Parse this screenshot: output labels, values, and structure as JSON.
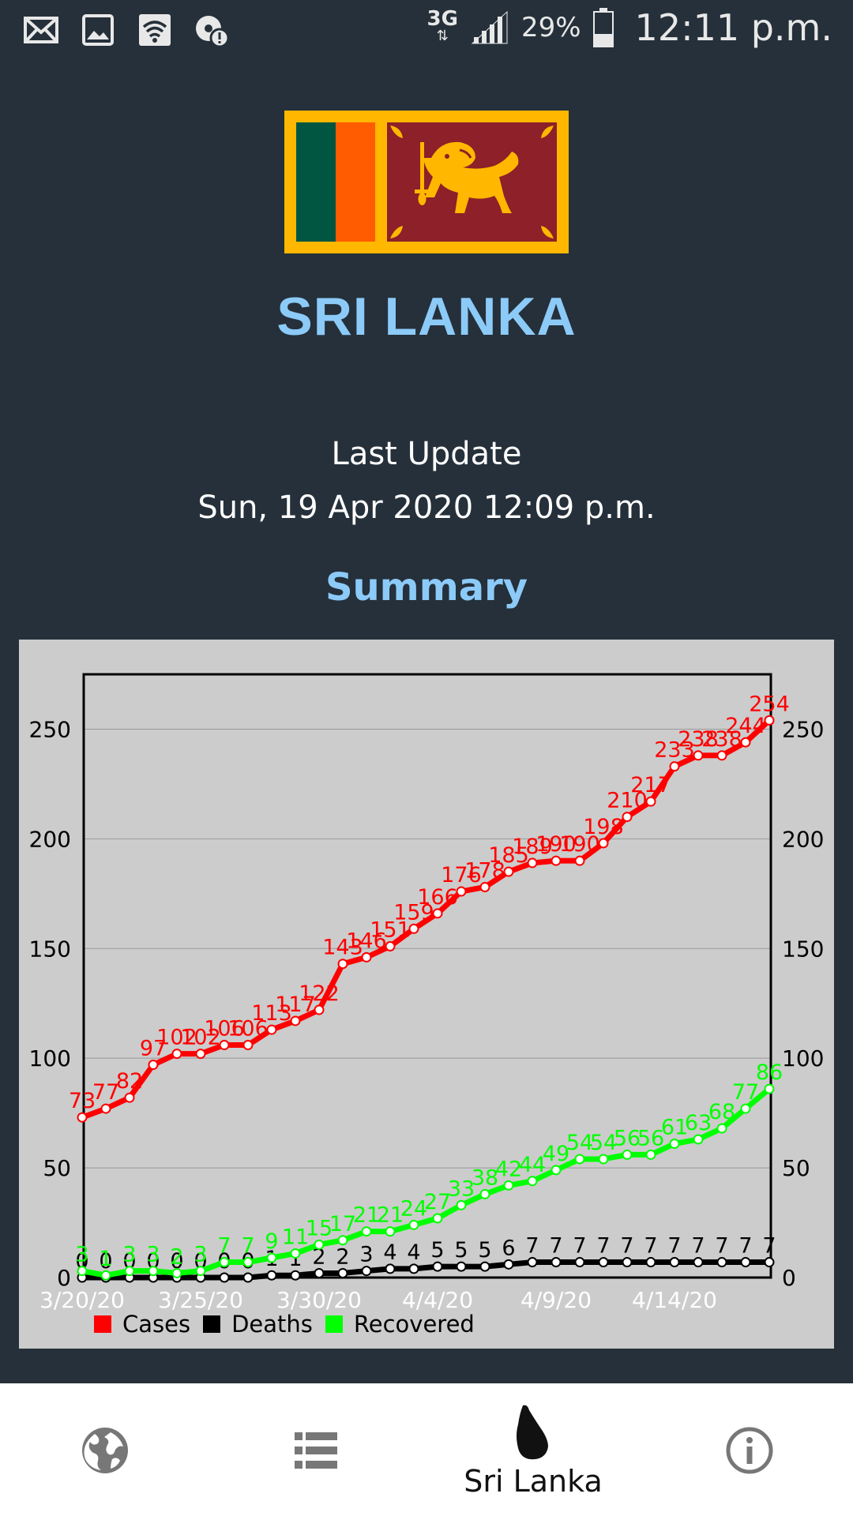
{
  "status_bar": {
    "network": "3G",
    "battery_pct": "29%",
    "time": "12:11 p.m.",
    "left_icons": [
      "mail-icon",
      "image-icon",
      "wifi-icon",
      "data-warning-icon"
    ]
  },
  "country": {
    "title": "SRI LANKA",
    "flag": "sri-lanka-flag"
  },
  "last_update": {
    "label": "Last Update",
    "value": "Sun, 19 Apr 2020 12:09 p.m."
  },
  "summary_title": "Summary",
  "colors": {
    "background": "#25303a",
    "accent": "#8ccaf8",
    "cases": "#ff0000",
    "deaths": "#000000",
    "recovered": "#00ff00"
  },
  "chart_data": {
    "type": "line",
    "ylim": [
      0,
      275
    ],
    "yticks": [
      0,
      50,
      100,
      150,
      200,
      250
    ],
    "x_tick_labels": [
      "3/20/20",
      "3/25/20",
      "3/30/20",
      "4/4/20",
      "4/9/20",
      "4/14/20"
    ],
    "x_tick_index": [
      0,
      5,
      10,
      15,
      20,
      25
    ],
    "grid": true,
    "legend_position": "bottom-left",
    "series": [
      {
        "name": "Cases",
        "color": "#ff0000",
        "values": [
          73,
          77,
          82,
          97,
          102,
          102,
          106,
          106,
          113,
          117,
          122,
          143,
          146,
          151,
          159,
          166,
          176,
          178,
          185,
          189,
          190,
          190,
          198,
          210,
          217,
          233,
          238,
          238,
          244,
          254
        ]
      },
      {
        "name": "Deaths",
        "color": "#000000",
        "values": [
          0,
          0,
          0,
          0,
          0,
          0,
          0,
          0,
          1,
          1,
          2,
          2,
          3,
          4,
          4,
          5,
          5,
          5,
          6,
          7,
          7,
          7,
          7,
          7,
          7,
          7,
          7,
          7,
          7,
          7
        ]
      },
      {
        "name": "Recovered",
        "color": "#00ff00",
        "values": [
          3,
          1,
          3,
          3,
          2,
          3,
          7,
          7,
          9,
          11,
          15,
          17,
          21,
          21,
          24,
          27,
          33,
          38,
          42,
          44,
          49,
          54,
          54,
          56,
          56,
          61,
          63,
          68,
          77,
          86
        ]
      }
    ]
  },
  "bottom_nav": {
    "items": [
      {
        "icon": "globe-icon",
        "label": ""
      },
      {
        "icon": "list-icon",
        "label": ""
      },
      {
        "icon": "sri-lanka-map-icon",
        "label": "Sri Lanka"
      },
      {
        "icon": "info-icon",
        "label": ""
      }
    ]
  }
}
